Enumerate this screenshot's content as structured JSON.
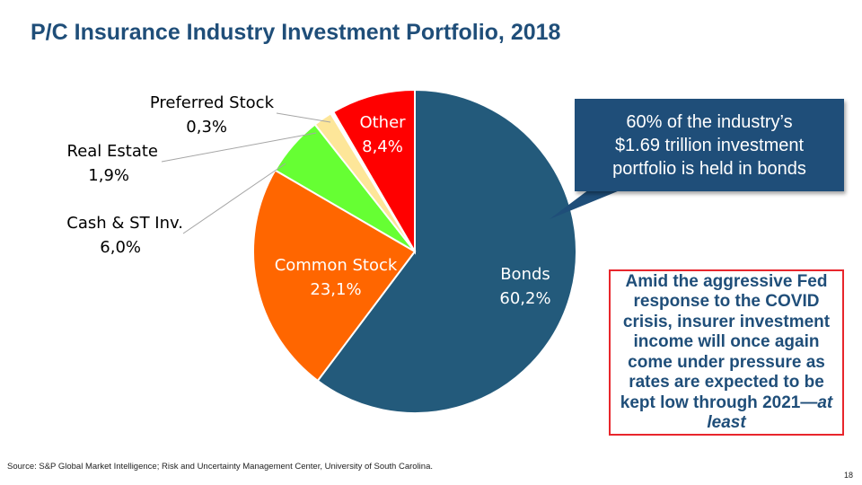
{
  "title": "P/C Insurance Industry Investment Portfolio, 2018",
  "chart_data": {
    "type": "pie",
    "title": "",
    "slices": [
      {
        "name": "Bonds",
        "value": 60.2,
        "label": "Bonds",
        "value_label": "60,2%",
        "color": "#235a7b",
        "label_color": "#ffffff"
      },
      {
        "name": "Common Stock",
        "value": 23.1,
        "label": "Common Stock",
        "value_label": "23,1%",
        "color": "#ff6600",
        "label_color": "#ffffff"
      },
      {
        "name": "Cash & ST Inv.",
        "value": 6.0,
        "label": "Cash & ST Inv.",
        "value_label": "6,0%",
        "color": "#66ff33",
        "label_color": "#000000"
      },
      {
        "name": "Real Estate",
        "value": 1.9,
        "label": "Real Estate",
        "value_label": "1,9%",
        "color": "#fde699",
        "label_color": "#000000"
      },
      {
        "name": "Preferred Stock",
        "value": 0.3,
        "label": "Preferred Stock",
        "value_label": "0,3%",
        "color": "#ffffff",
        "label_color": "#000000"
      },
      {
        "name": "Other",
        "value": 8.4,
        "label": "Other",
        "value_label": "8,4%",
        "color": "#ff0000",
        "label_color": "#ffffff"
      }
    ]
  },
  "callout": "60% of the industry’s\n$1.69 trillion investment\nportfolio is held in bonds",
  "note": {
    "text": "Amid the aggressive Fed response to the COVID crisis, insurer investment income will once again come under pressure as rates are expected to be kept low through 2021—",
    "emphasis": "at least"
  },
  "source": "Source:  S&P Global Market Intelligence;  Risk and Uncertainty Management Center, University of South Carolina.",
  "page_number": "18",
  "colors": {
    "title": "#1f4e79",
    "callout_bg": "#1f4e79",
    "note_border": "#e8262c"
  }
}
